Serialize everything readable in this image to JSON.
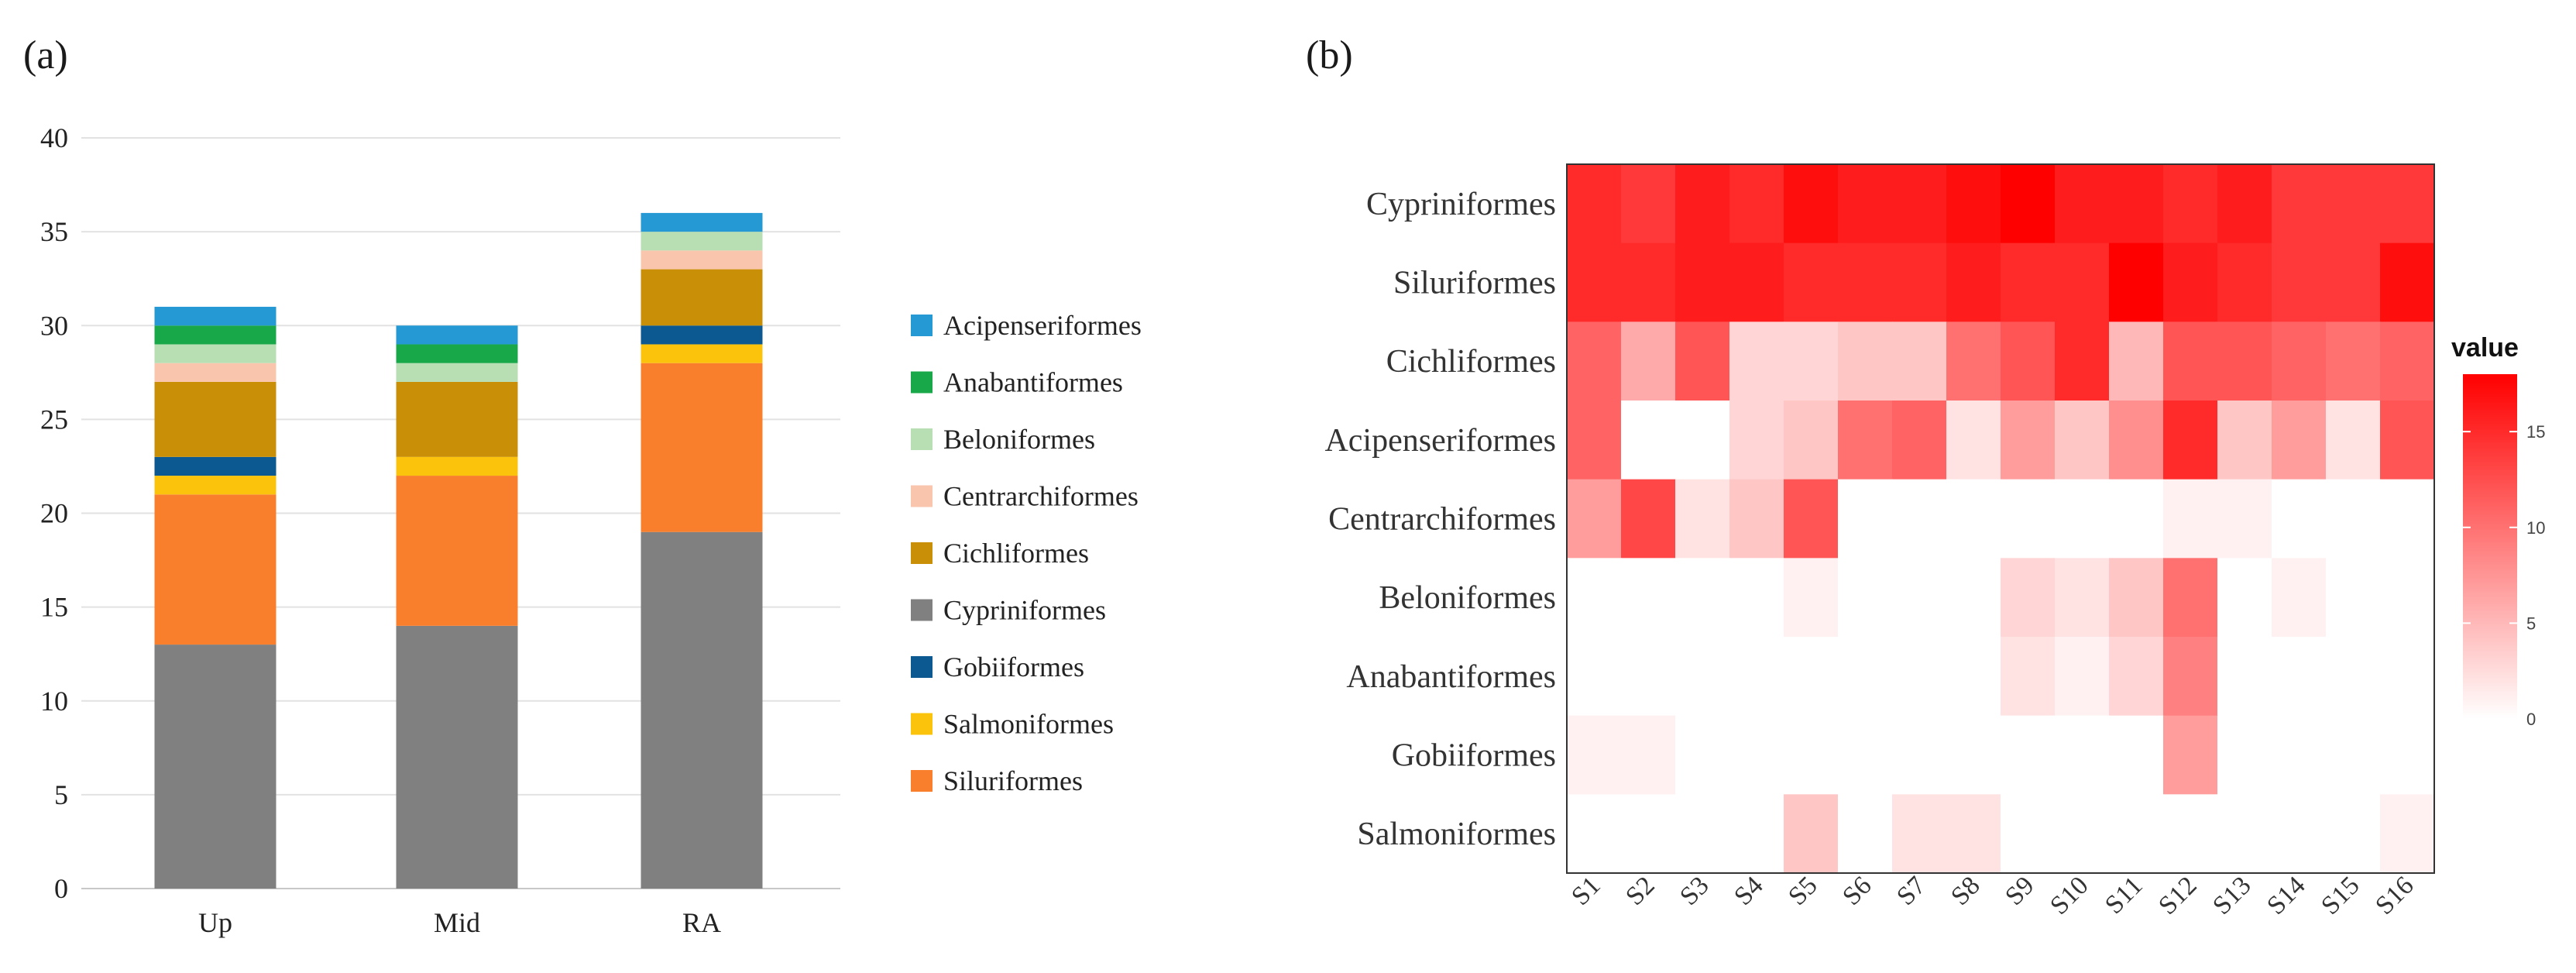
{
  "panel_a_label": "(a)",
  "panel_b_label": "(b)",
  "chart_data": [
    {
      "type": "bar",
      "stacked": true,
      "categories": [
        "Up",
        "Mid",
        "RA"
      ],
      "ylim": [
        0,
        40
      ],
      "yticks": [
        "0",
        "5",
        "10",
        "15",
        "20",
        "25",
        "30",
        "35",
        "40"
      ],
      "grid": true,
      "legend_position": "right",
      "series": [
        {
          "name": "Cypriniformes",
          "color": "#808080",
          "values": [
            13,
            14,
            19
          ]
        },
        {
          "name": "Siluriformes",
          "color": "#F97F2D",
          "values": [
            8,
            8,
            9
          ]
        },
        {
          "name": "Salmoniformes",
          "color": "#FBC30B",
          "values": [
            1,
            1,
            1
          ]
        },
        {
          "name": "Gobiiformes",
          "color": "#0C5891",
          "values": [
            1,
            0,
            1
          ]
        },
        {
          "name": "Cichliformes",
          "color": "#C98F07",
          "values": [
            4,
            4,
            3
          ]
        },
        {
          "name": "Centrarchiformes",
          "color": "#F9C6AD",
          "values": [
            1,
            0,
            1
          ]
        },
        {
          "name": "Beloniformes",
          "color": "#B8DEB3",
          "values": [
            1,
            1,
            1
          ]
        },
        {
          "name": "Anabantiformes",
          "color": "#18A84A",
          "values": [
            1,
            1,
            0
          ]
        },
        {
          "name": "Acipenseriformes",
          "color": "#2599D4",
          "values": [
            1,
            1,
            1
          ]
        }
      ],
      "legend_order": [
        "Acipenseriformes",
        "Anabantiformes",
        "Beloniformes",
        "Centrarchiformes",
        "Cichliformes",
        "Cypriniformes",
        "Gobiiformes",
        "Salmoniformes",
        "Siluriformes"
      ]
    },
    {
      "type": "heatmap",
      "x": [
        "S1",
        "S2",
        "S3",
        "S4",
        "S5",
        "S6",
        "S7",
        "S8",
        "S9",
        "S10",
        "S11",
        "S12",
        "S13",
        "S14",
        "S15",
        "S16"
      ],
      "y": [
        "Cypriniformes",
        "Siluriformes",
        "Cichliformes",
        "Acipenseriformes",
        "Centrarchiformes",
        "Beloniformes",
        "Anabantiformes",
        "Gobiiformes",
        "Salmoniformes"
      ],
      "values": [
        [
          15,
          14,
          16,
          15,
          17,
          16,
          16,
          17,
          18,
          16,
          16,
          15,
          16,
          14,
          14,
          14
        ],
        [
          15,
          15,
          16,
          16,
          15,
          15,
          15,
          16,
          15,
          15,
          18,
          16,
          15,
          14,
          14,
          17
        ],
        [
          11,
          6,
          12,
          3,
          3,
          4,
          4,
          10,
          12,
          15,
          5,
          12,
          12,
          11,
          10,
          11
        ],
        [
          11,
          0,
          0,
          3,
          4,
          10,
          11,
          2,
          7,
          4,
          8,
          15,
          4,
          7,
          2,
          12
        ],
        [
          7,
          13,
          2,
          4,
          12,
          0,
          0,
          0,
          0,
          0,
          0,
          1,
          1,
          0,
          0,
          0
        ],
        [
          0,
          0,
          0,
          0,
          1,
          0,
          0,
          0,
          3,
          2,
          4,
          10,
          0,
          1,
          0,
          0
        ],
        [
          0,
          0,
          0,
          0,
          0,
          0,
          0,
          0,
          2,
          1,
          3,
          9,
          0,
          0,
          0,
          0
        ],
        [
          1,
          1,
          0,
          0,
          0,
          0,
          0,
          0,
          0,
          0,
          0,
          7,
          0,
          0,
          0,
          0
        ],
        [
          0,
          0,
          0,
          0,
          4,
          0,
          2,
          2,
          0,
          0,
          0,
          0,
          0,
          0,
          0,
          1
        ]
      ],
      "colorbar": {
        "title": "value",
        "range": [
          0,
          18
        ],
        "ticks": [
          "0",
          "5",
          "10",
          "15"
        ],
        "low_color": "#FFFFFF",
        "high_color": "#FF0000"
      }
    }
  ]
}
